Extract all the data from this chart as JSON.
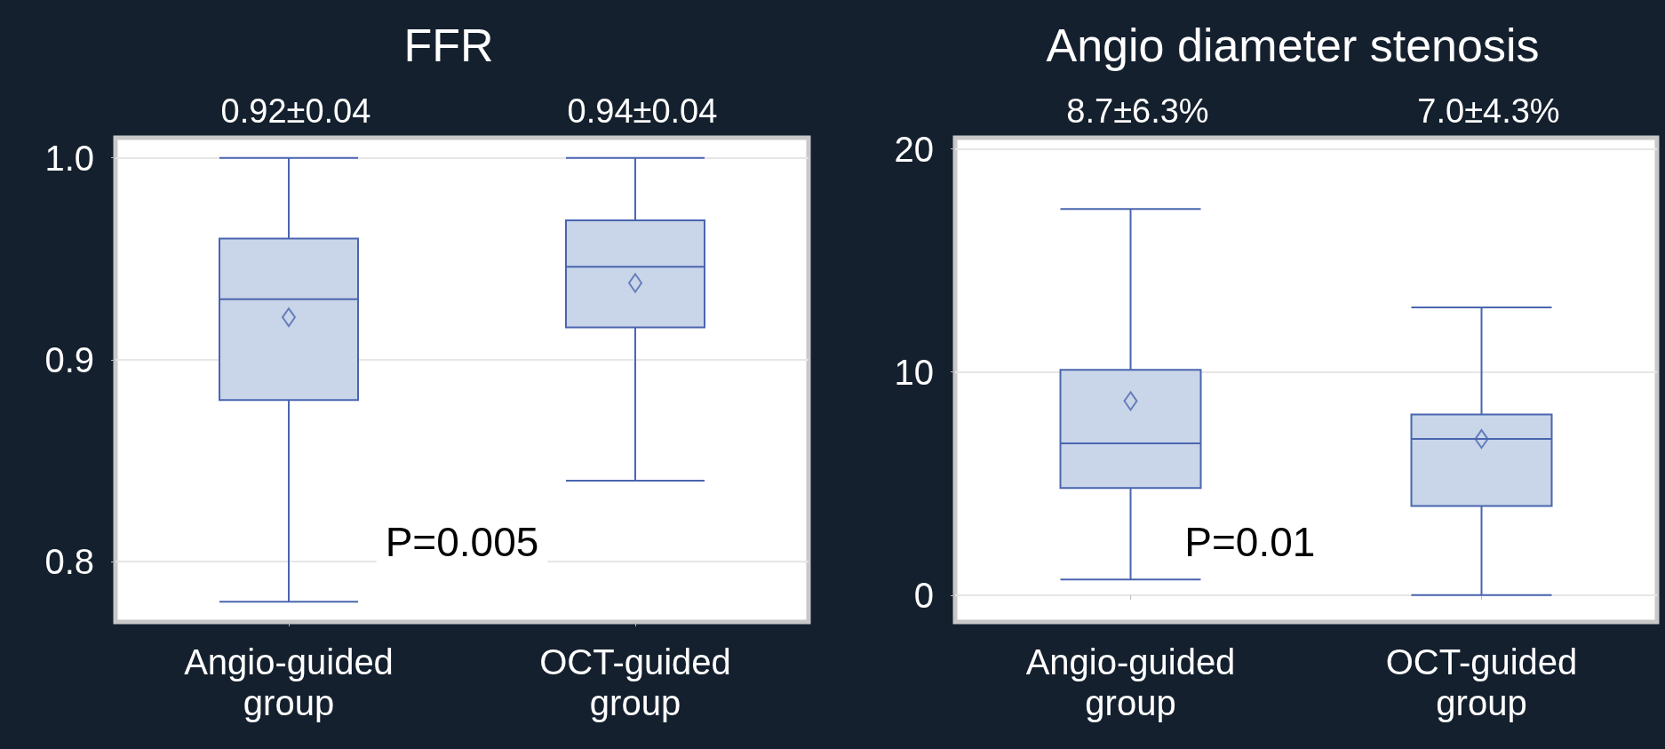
{
  "chart_data": [
    {
      "type": "box",
      "title": "FFR",
      "categories": [
        "Angio-guided\ngroup",
        "OCT-guided\ngroup"
      ],
      "ylim": [
        0.77,
        1.01
      ],
      "yticks": [
        0.8,
        0.9,
        {
          "value": 1,
          "label": "1.0"
        }
      ],
      "grid": "y",
      "marker": "diamond",
      "color": "#4a66b0",
      "boxes": [
        {
          "low": 0.78,
          "q1": 0.88,
          "median": 0.93,
          "q3": 0.96,
          "high": 1.0,
          "mean": 0.921
        },
        {
          "low": 0.84,
          "q1": 0.916,
          "median": 0.946,
          "q3": 0.969,
          "high": 1.0,
          "mean": 0.938
        }
      ],
      "annotations": [
        "0.92±0.04",
        "0.94±0.04",
        "P=0.005"
      ]
    },
    {
      "type": "box",
      "title": "Angio diameter stenosis",
      "categories": [
        "Angio-guided\ngroup",
        "OCT-guided\ngroup"
      ],
      "ylim": [
        -1.2,
        20.5
      ],
      "yticks": [
        0,
        10,
        20
      ],
      "grid": "y",
      "marker": "diamond",
      "color": "#4a66b0",
      "boxes": [
        {
          "low": 0.7,
          "q1": 4.8,
          "median": 6.8,
          "q3": 10.1,
          "high": 17.3,
          "mean": 8.7
        },
        {
          "low": 0,
          "q1": 4.0,
          "median": 7.0,
          "q3": 8.1,
          "high": 12.9,
          "mean": 7.0
        }
      ],
      "annotations": [
        "8.7±6.3%",
        "7.0±4.3%",
        "P=0.01"
      ]
    }
  ]
}
